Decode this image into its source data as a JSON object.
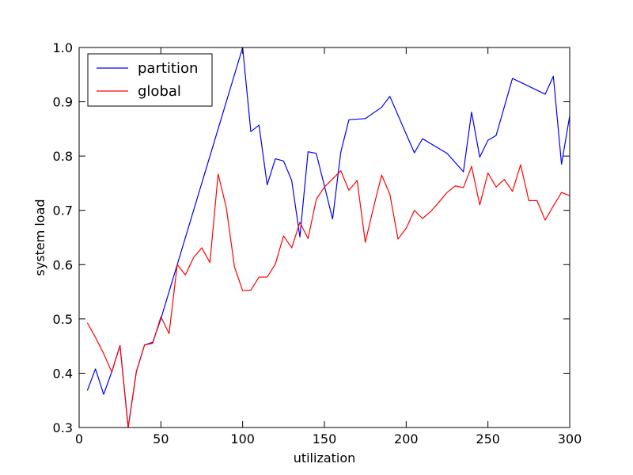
{
  "chart_data": {
    "type": "line",
    "title": "",
    "xlabel": "utilization",
    "ylabel": "system load",
    "xlim": [
      0,
      300
    ],
    "ylim": [
      0.3,
      1.0
    ],
    "xticks": [
      0,
      50,
      100,
      150,
      200,
      250,
      300
    ],
    "xtick_labels": [
      "0",
      "50",
      "100",
      "150",
      "200",
      "250",
      "300"
    ],
    "yticks": [
      0.3,
      0.4,
      0.5,
      0.6,
      0.7,
      0.8,
      0.9,
      1.0
    ],
    "ytick_labels": [
      "0.3",
      "0.4",
      "0.5",
      "0.6",
      "0.7",
      "0.8",
      "0.9",
      "1.0"
    ],
    "grid": false,
    "legend_position": "top-left",
    "x": [
      5,
      10,
      15,
      20,
      25,
      30,
      35,
      40,
      45,
      50,
      55,
      60,
      65,
      70,
      75,
      80,
      85,
      90,
      95,
      100,
      105,
      110,
      115,
      120,
      125,
      130,
      135,
      140,
      145,
      150,
      155,
      160,
      165,
      170,
      175,
      180,
      185,
      190,
      195,
      200,
      205,
      210,
      215,
      220,
      225,
      230,
      235,
      240,
      245,
      250,
      255,
      260,
      265,
      270,
      275,
      280,
      285,
      290,
      295,
      300
    ],
    "series": [
      {
        "name": "partition",
        "color": "#0000ff",
        "values": [
          0.368,
          0.408,
          0.361,
          0.403,
          0.451,
          0.3,
          0.403,
          0.452,
          0.457,
          0.5,
          null,
          null,
          null,
          null,
          null,
          null,
          null,
          null,
          null,
          1.0,
          0.845,
          0.857,
          0.747,
          0.795,
          0.791,
          0.755,
          0.651,
          0.808,
          0.805,
          0.745,
          0.684,
          0.807,
          0.867,
          null,
          0.869,
          null,
          0.89,
          0.91,
          null,
          null,
          0.806,
          0.832,
          null,
          null,
          0.805,
          null,
          0.771,
          0.881,
          0.798,
          0.829,
          0.838,
          null,
          0.943,
          null,
          null,
          null,
          0.914,
          0.947,
          0.785,
          0.874
        ]
      },
      {
        "name": "global",
        "color": "#ff0000",
        "values": [
          0.493,
          0.466,
          0.436,
          0.402,
          0.451,
          0.3,
          0.403,
          0.452,
          0.455,
          0.504,
          0.473,
          0.6,
          0.581,
          0.613,
          0.631,
          0.604,
          0.767,
          0.705,
          0.596,
          0.552,
          0.553,
          0.577,
          0.577,
          0.601,
          0.653,
          0.631,
          0.678,
          0.648,
          0.72,
          0.743,
          0.758,
          0.773,
          0.737,
          0.755,
          0.641,
          0.705,
          0.765,
          0.73,
          0.647,
          0.667,
          0.7,
          0.685,
          0.698,
          0.715,
          0.733,
          0.745,
          0.742,
          0.781,
          0.71,
          0.769,
          0.743,
          0.757,
          0.735,
          0.784,
          0.718,
          0.718,
          0.682,
          0.708,
          0.733,
          0.727
        ]
      }
    ]
  }
}
